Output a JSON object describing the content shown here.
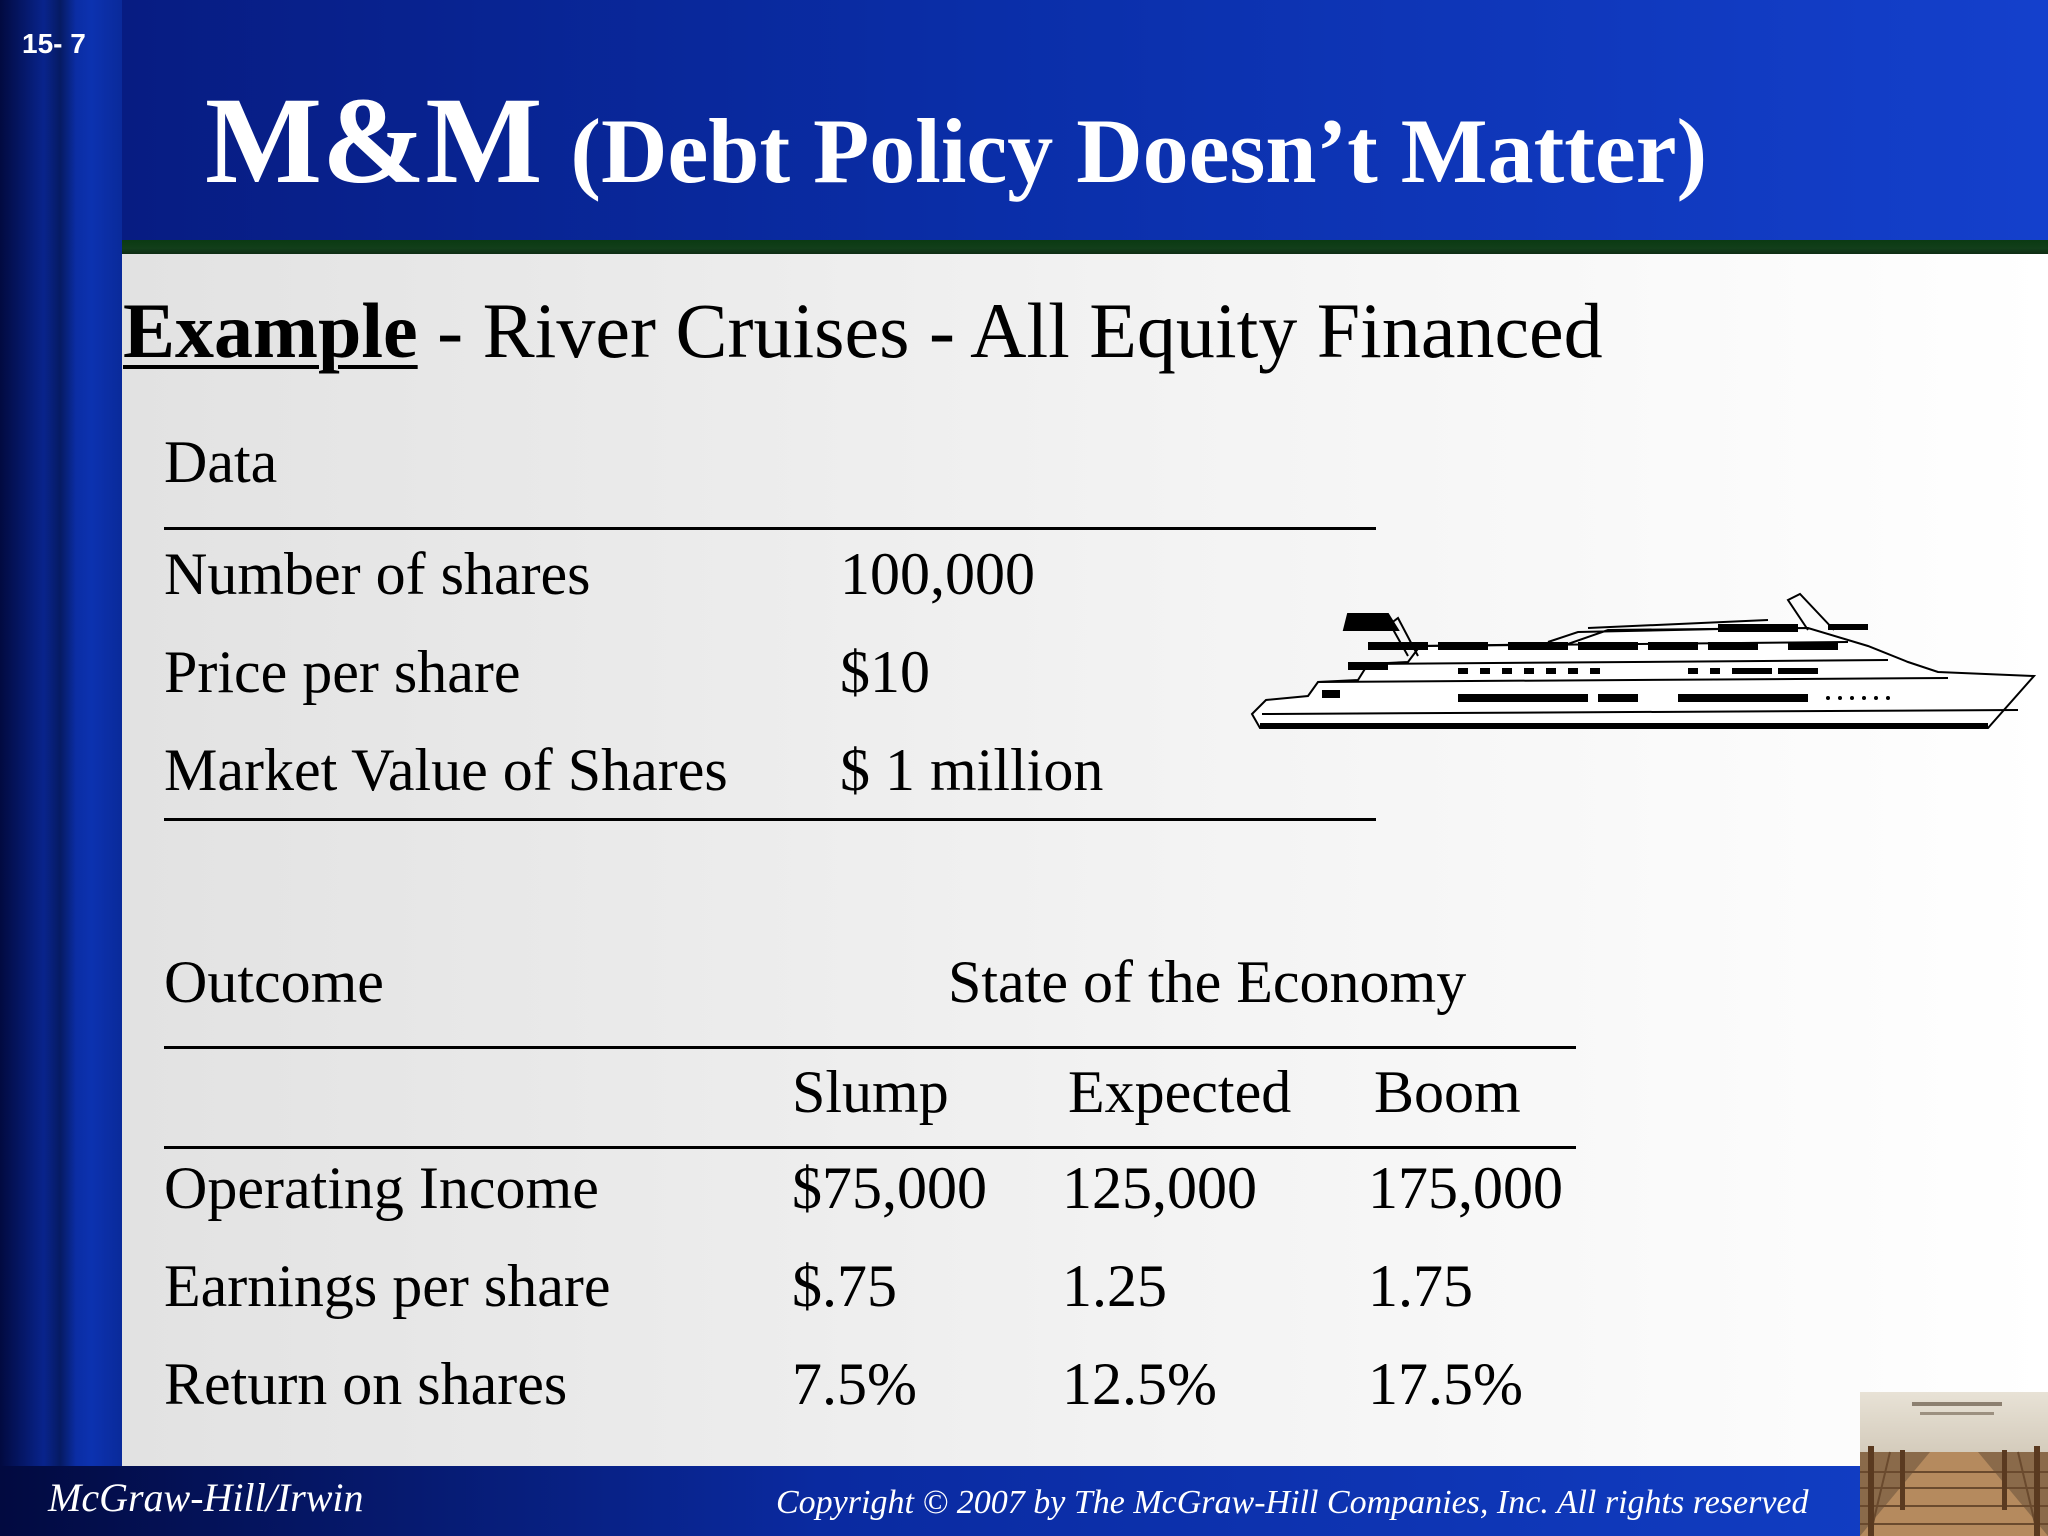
{
  "slide": {
    "number": "15- 7",
    "title_main": "M&M",
    "title_paren": "(Debt Policy Doesn’t Matter)"
  },
  "example": {
    "label": "Example",
    "text": " - River Cruises - All Equity Financed"
  },
  "data_table": {
    "heading": "Data",
    "rows": [
      {
        "label": "Number of shares",
        "value": "100,000"
      },
      {
        "label": "Price per share",
        "value": "$10"
      },
      {
        "label": "Market Value of Shares",
        "value": "$ 1 million"
      }
    ]
  },
  "outcome_table": {
    "heading": "Outcome",
    "group_heading": "State of the Economy",
    "columns": [
      "Slump",
      "Expected",
      "Boom"
    ],
    "rows": [
      {
        "label": "Operating Income",
        "values": [
          "$75,000",
          "125,000",
          "175,000"
        ]
      },
      {
        "label": "Earnings per share",
        "values": [
          "$.75",
          "1.25",
          "1.75"
        ]
      },
      {
        "label": "Return on shares",
        "values": [
          "7.5%",
          "12.5%",
          "17.5%"
        ]
      }
    ]
  },
  "footer": {
    "publisher": "McGraw-Hill/Irwin",
    "copyright": "Copyright © 2007 by The McGraw-Hill Companies, Inc. All rights reserved"
  },
  "images": {
    "ship": "cruise-ship-illustration",
    "thumbnail": "book-cover-boardwalk"
  }
}
